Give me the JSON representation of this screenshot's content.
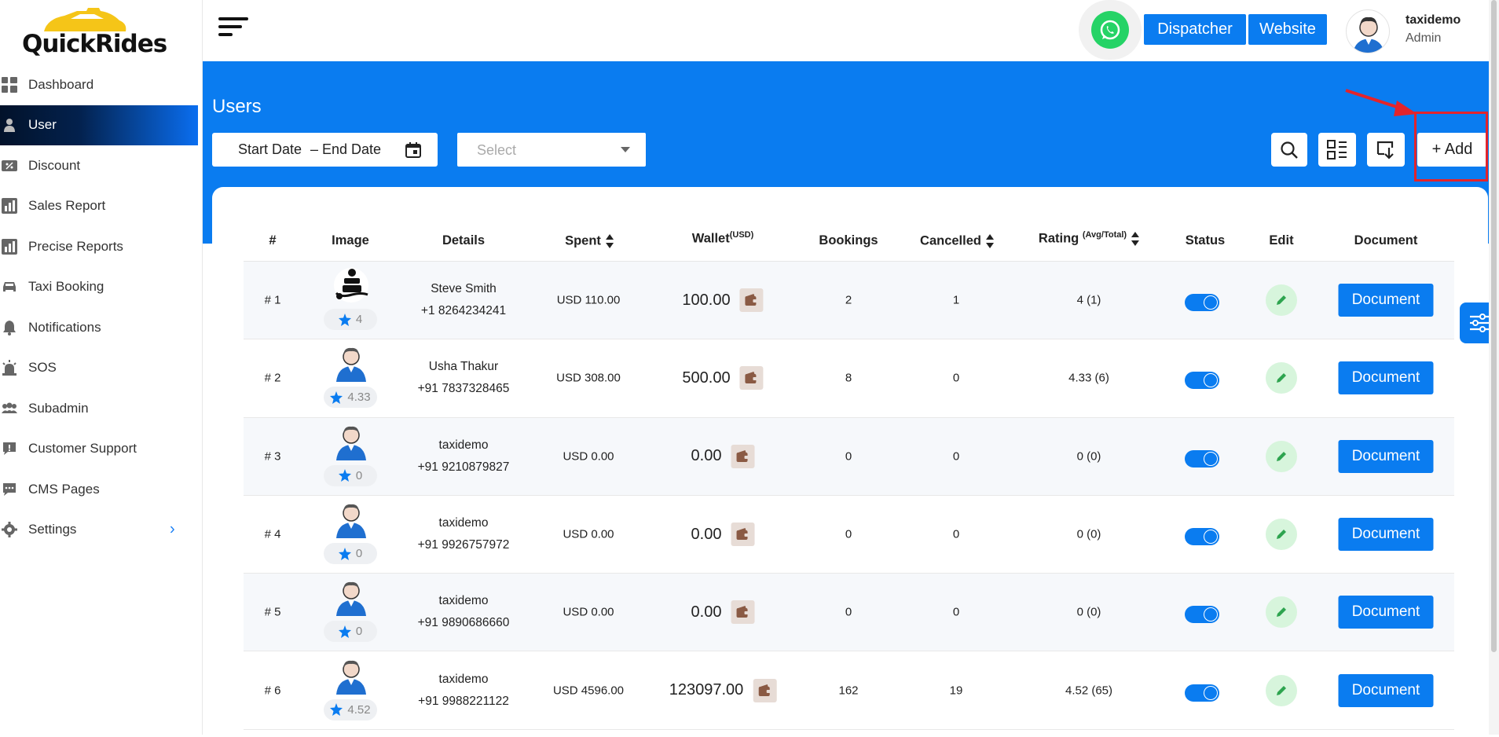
{
  "brand": {
    "logo_text": "QuickRides"
  },
  "sidebar": {
    "items": [
      {
        "label": "Dashboard",
        "icon": "dashboard-icon"
      },
      {
        "label": "User",
        "icon": "user-icon",
        "active": true
      },
      {
        "label": "Discount",
        "icon": "discount-icon"
      },
      {
        "label": "Sales Report",
        "icon": "report-icon"
      },
      {
        "label": "Precise Reports",
        "icon": "report-icon"
      },
      {
        "label": "Taxi Booking",
        "icon": "car-icon"
      },
      {
        "label": "Notifications",
        "icon": "bell-icon"
      },
      {
        "label": "SOS",
        "icon": "alarm-icon"
      },
      {
        "label": "Subadmin",
        "icon": "group-icon"
      },
      {
        "label": "Customer Support",
        "icon": "support-icon"
      },
      {
        "label": "CMS Pages",
        "icon": "chat-icon"
      },
      {
        "label": "Settings",
        "icon": "gear-icon",
        "has_submenu": true
      }
    ],
    "settings_chevron": "›"
  },
  "header": {
    "dispatcher_label": "Dispatcher",
    "website_label": "Website",
    "user_name": "taxidemo",
    "user_role": "Admin"
  },
  "toolbar": {
    "page_title": "Users",
    "start_date": "Start Date",
    "date_sep": "–",
    "end_date": "End Date",
    "select_placeholder": "Select",
    "add_label": "+ Add"
  },
  "table": {
    "columns": {
      "num": "#",
      "image": "Image",
      "details": "Details",
      "spent": "Spent",
      "wallet": "Wallet",
      "wallet_unit": "(USD)",
      "bookings": "Bookings",
      "cancelled": "Cancelled",
      "rating": "Rating",
      "rating_unit": "(Avg/Total)",
      "status": "Status",
      "edit": "Edit",
      "document": "Document"
    },
    "rows": [
      {
        "num": "# 1",
        "rating_badge": "4",
        "name": "Steve Smith",
        "phone": "+1 8264234241",
        "spent": "USD 110.00",
        "wallet": "100.00",
        "bookings": "2",
        "cancelled": "1",
        "rating": "4 (1)",
        "status_on": true,
        "doc_label": "Document",
        "avatar": "custom-person-icon"
      },
      {
        "num": "# 2",
        "rating_badge": "4.33",
        "name": "Usha Thakur",
        "phone": "+91 7837328465",
        "spent": "USD 308.00",
        "wallet": "500.00",
        "bookings": "8",
        "cancelled": "0",
        "rating": "4.33 (6)",
        "status_on": true,
        "doc_label": "Document",
        "avatar": "default-avatar-icon"
      },
      {
        "num": "# 3",
        "rating_badge": "0",
        "name": "taxidemo",
        "phone": "+91 9210879827",
        "spent": "USD 0.00",
        "wallet": "0.00",
        "bookings": "0",
        "cancelled": "0",
        "rating": "0 (0)",
        "status_on": true,
        "doc_label": "Document",
        "avatar": "default-avatar-icon"
      },
      {
        "num": "# 4",
        "rating_badge": "0",
        "name": "taxidemo",
        "phone": "+91 9926757972",
        "spent": "USD 0.00",
        "wallet": "0.00",
        "bookings": "0",
        "cancelled": "0",
        "rating": "0 (0)",
        "status_on": true,
        "doc_label": "Document",
        "avatar": "default-avatar-icon"
      },
      {
        "num": "# 5",
        "rating_badge": "0",
        "name": "taxidemo",
        "phone": "+91 9890686660",
        "spent": "USD 0.00",
        "wallet": "0.00",
        "bookings": "0",
        "cancelled": "0",
        "rating": "0 (0)",
        "status_on": true,
        "doc_label": "Document",
        "avatar": "default-avatar-icon"
      },
      {
        "num": "# 6",
        "rating_badge": "4.52",
        "name": "taxidemo",
        "phone": "+91 9988221122",
        "spent": "USD 4596.00",
        "wallet": "123097.00",
        "bookings": "162",
        "cancelled": "19",
        "rating": "4.52 (65)",
        "status_on": true,
        "doc_label": "Document",
        "avatar": "default-avatar-icon"
      }
    ]
  },
  "colors": {
    "primary": "#0a7cf0",
    "highlight": "#e3242b",
    "edit_bg": "#d7f5dc",
    "whatsapp": "#25d366"
  }
}
